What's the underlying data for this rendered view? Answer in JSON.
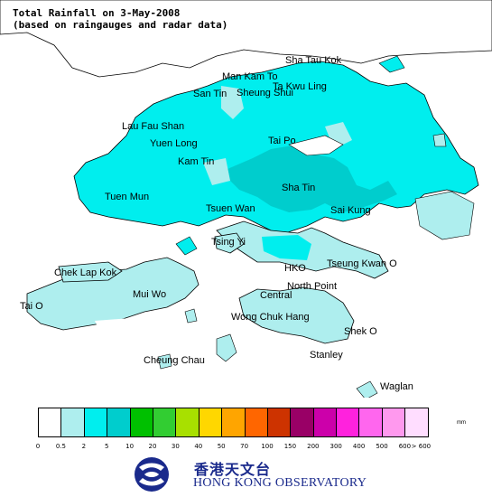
{
  "title": {
    "line1": "Total Rainfall on 3-May-2008",
    "line2": "(based on raingauges and radar data)"
  },
  "places": [
    {
      "id": "sha-tau-kok",
      "label": "Sha Tau Kok"
    },
    {
      "id": "man-kam-to",
      "label": "Man Kam To"
    },
    {
      "id": "ta-kwu-ling",
      "label": "Ta Kwu Ling"
    },
    {
      "id": "san-tin",
      "label": "San Tin"
    },
    {
      "id": "sheung-shui",
      "label": "Sheung Shui"
    },
    {
      "id": "lau-fau-shan",
      "label": "Lau Fau Shan"
    },
    {
      "id": "yuen-long",
      "label": "Yuen Long"
    },
    {
      "id": "tai-po",
      "label": "Tai Po"
    },
    {
      "id": "kam-tin",
      "label": "Kam Tin"
    },
    {
      "id": "tuen-mun",
      "label": "Tuen Mun"
    },
    {
      "id": "sha-tin",
      "label": "Sha Tin"
    },
    {
      "id": "tsuen-wan",
      "label": "Tsuen Wan"
    },
    {
      "id": "sai-kung",
      "label": "Sai Kung"
    },
    {
      "id": "tsing-yi",
      "label": "Tsing Yi"
    },
    {
      "id": "chek-lap-kok",
      "label": "Chek Lap Kok"
    },
    {
      "id": "hko",
      "label": "HKO"
    },
    {
      "id": "tseung-kwan-o",
      "label": "Tseung Kwan O"
    },
    {
      "id": "mui-wo",
      "label": "Mui Wo"
    },
    {
      "id": "north-point",
      "label": "North Point"
    },
    {
      "id": "central",
      "label": "Central"
    },
    {
      "id": "tai-o",
      "label": "Tai O"
    },
    {
      "id": "wong-chuk-hang",
      "label": "Wong Chuk Hang"
    },
    {
      "id": "shek-o",
      "label": "Shek O"
    },
    {
      "id": "cheung-chau",
      "label": "Cheung Chau"
    },
    {
      "id": "stanley",
      "label": "Stanley"
    },
    {
      "id": "waglan",
      "label": "Waglan"
    }
  ],
  "legend": {
    "unit": "mm",
    "colors": [
      "#ffffff",
      "#aeeeee",
      "#00eeee",
      "#00cdcd",
      "#00c000",
      "#32cd32",
      "#a8e000",
      "#ffd700",
      "#ffa500",
      "#ff6600",
      "#cd3300",
      "#990066",
      "#cc00aa",
      "#ff22dd",
      "#ff66ee",
      "#ff99ee",
      "#ffddff"
    ],
    "ticks": [
      "0",
      "0.5",
      "2",
      "5",
      "10",
      "20",
      "30",
      "40",
      "50",
      "70",
      "100",
      "150",
      "200",
      "300",
      "400",
      "500",
      "600",
      "> 600"
    ]
  },
  "organization": {
    "name_zh": "香港天文台",
    "name_en": "HONG KONG OBSERVATORY"
  }
}
